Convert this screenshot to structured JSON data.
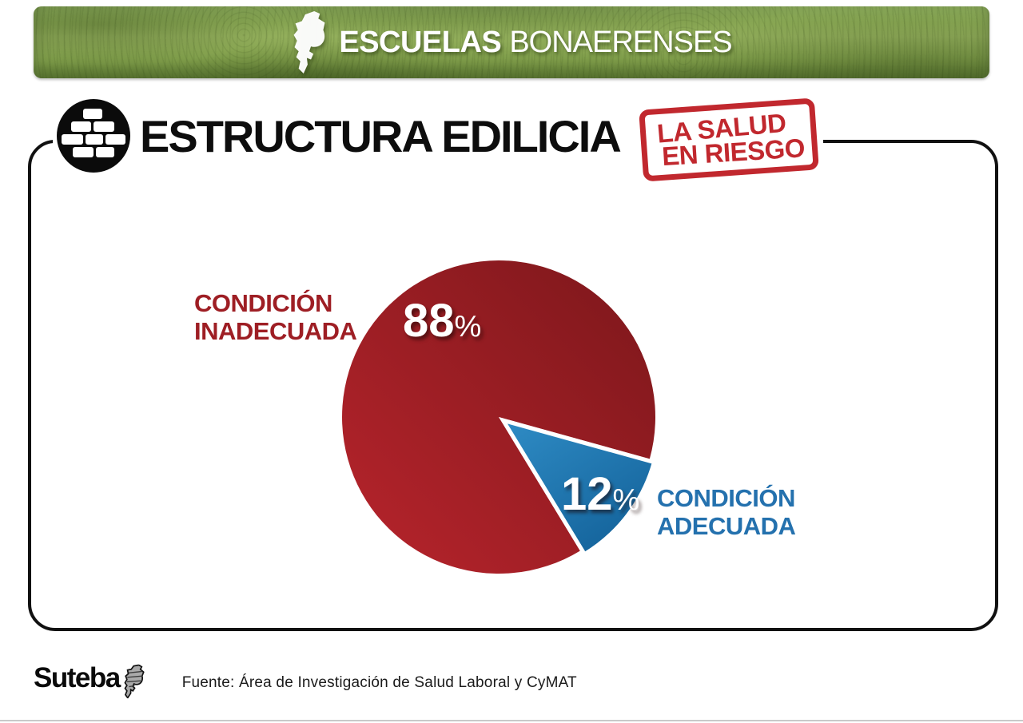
{
  "header": {
    "title_bold": "ESCUELAS",
    "title_light": "BONAERENSES",
    "gradient": [
      "#7FA04B",
      "#92AE5B",
      "#83A14D",
      "#6C8A3D"
    ],
    "map_icon": "buenos-aires-province"
  },
  "section": {
    "title": "ESTRUCTURA EDILICIA",
    "icon": "brick-wall"
  },
  "stamp": {
    "line1": "LA SALUD",
    "line2": "EN RIESGO",
    "color": "#C1282E"
  },
  "chart_data": {
    "type": "pie",
    "title": "ESTRUCTURA EDILICIA",
    "categories": [
      "CONDICIÓN INADECUADA",
      "CONDICIÓN ADECUADA"
    ],
    "values": [
      88,
      12
    ],
    "unit": "%",
    "start_angle_deg": 58.7,
    "legend_position": "inline-callouts",
    "slices": [
      {
        "label_lines": [
          "CONDICIÓN",
          "INADECUADA"
        ],
        "value": 88,
        "gradient": [
          "#B8242C",
          "#7C171B"
        ],
        "label_color": "#9E1E24",
        "explode": 0
      },
      {
        "label_lines": [
          "CONDICIÓN",
          "ADECUADA"
        ],
        "value": 12,
        "gradient": [
          "#2F8CC5",
          "#14639B"
        ],
        "label_color": "#2471AE",
        "explode": 7
      }
    ]
  },
  "footer": {
    "logo_text": "Suteba",
    "source": "Fuente: Área de Investigación de Salud Laboral y CyMAT"
  }
}
